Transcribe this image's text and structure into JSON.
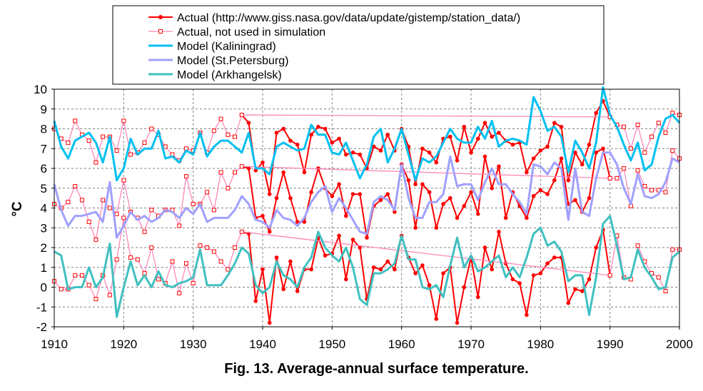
{
  "caption": "Fig. 13. Average-annual surface temperature.",
  "chart_data": {
    "type": "line",
    "title": "",
    "xlabel": "",
    "ylabel": "°C",
    "xlim": [
      1910,
      2000
    ],
    "ylim": [
      -2,
      10
    ],
    "xticks": [
      1910,
      1920,
      1930,
      1940,
      1950,
      1960,
      1970,
      1980,
      1990,
      2000
    ],
    "yticks": [
      -2,
      -1,
      0,
      1,
      2,
      3,
      4,
      5,
      6,
      7,
      8,
      9,
      10
    ],
    "grid": true,
    "legend": "top-center",
    "series": [
      {
        "name": "Actual (http://www.giss.nasa.gov/data/update/gistemp/station_data/)",
        "color": "#ff0000",
        "marker": "filled-circle",
        "width": 2,
        "group": "actual-kaliningrad",
        "x": [
          1937,
          1938,
          1939,
          1940,
          1941,
          1942,
          1943,
          1944,
          1945,
          1946,
          1947,
          1948,
          1949,
          1950,
          1951,
          1952,
          1953,
          1954,
          1955,
          1956,
          1957,
          1958,
          1959,
          1960,
          1961,
          1962,
          1963,
          1964,
          1965,
          1966,
          1967,
          1968,
          1969,
          1970,
          1971,
          1972,
          1973,
          1974,
          1975,
          1976,
          1977,
          1978,
          1979,
          1980,
          1981,
          1982,
          1983,
          1984,
          1985,
          1986,
          1987,
          1988,
          1989,
          1990
        ],
        "y": [
          8.7,
          8.3,
          5.9,
          6.3,
          4.7,
          7.8,
          8.0,
          7.4,
          7.2,
          5.8,
          7.7,
          8.1,
          8.0,
          7.3,
          7.5,
          6.7,
          6.8,
          6.7,
          6.0,
          7.1,
          6.9,
          7.7,
          6.9,
          8.0,
          7.1,
          5.2,
          7.0,
          6.8,
          6.3,
          7.5,
          7.6,
          6.4,
          8.1,
          6.8,
          7.5,
          8.3,
          7.6,
          7.8,
          7.4,
          7.2,
          7.3,
          5.8,
          6.5,
          6.9,
          7.1,
          8.3,
          8.1,
          5.4,
          6.8,
          6.2,
          7.2,
          8.8,
          9.4,
          8.6
        ]
      },
      {
        "name": "",
        "color": "#ff0000",
        "marker": "filled-circle",
        "width": 2,
        "group": "actual-stpetersburg",
        "x": [
          1937,
          1938,
          1939,
          1940,
          1941,
          1942,
          1943,
          1944,
          1945,
          1946,
          1947,
          1948,
          1949,
          1950,
          1951,
          1952,
          1953,
          1954,
          1955,
          1956,
          1957,
          1958,
          1959,
          1960,
          1961,
          1962,
          1963,
          1964,
          1965,
          1966,
          1967,
          1968,
          1969,
          1970,
          1971,
          1972,
          1973,
          1974,
          1975,
          1976,
          1977,
          1978,
          1979,
          1980,
          1981,
          1982,
          1983,
          1984,
          1985,
          1986,
          1987,
          1988,
          1989,
          1990
        ],
        "y": [
          6.1,
          6.0,
          3.5,
          3.6,
          2.8,
          4.5,
          5.8,
          4.5,
          3.3,
          3.3,
          4.8,
          6.0,
          5.0,
          4.6,
          5.2,
          3.6,
          4.7,
          4.7,
          2.5,
          4.1,
          4.4,
          4.7,
          3.8,
          6.2,
          5.4,
          3.0,
          5.2,
          4.8,
          3.0,
          4.2,
          4.5,
          3.5,
          4.1,
          4.8,
          3.7,
          6.6,
          5.0,
          6.1,
          3.5,
          4.8,
          4.1,
          3.5,
          4.6,
          4.9,
          4.7,
          5.4,
          6.5,
          4.2,
          4.4,
          3.8,
          4.5,
          6.8,
          7.0,
          5.5
        ]
      },
      {
        "name": "",
        "color": "#ff0000",
        "marker": "filled-circle",
        "width": 2,
        "group": "actual-arkhangelsk",
        "x": [
          1937,
          1938,
          1939,
          1940,
          1941,
          1942,
          1943,
          1944,
          1945,
          1946,
          1947,
          1948,
          1949,
          1950,
          1951,
          1952,
          1953,
          1954,
          1955,
          1956,
          1957,
          1958,
          1959,
          1960,
          1961,
          1962,
          1963,
          1964,
          1965,
          1966,
          1967,
          1968,
          1969,
          1970,
          1971,
          1972,
          1973,
          1974,
          1975,
          1976,
          1977,
          1978,
          1979,
          1980,
          1981,
          1982,
          1983,
          1984,
          1985,
          1986,
          1987,
          1988,
          1989,
          1990
        ],
        "y": [
          2.8,
          2.7,
          -0.7,
          0.9,
          -1.8,
          1.5,
          -0.1,
          1.3,
          -0.2,
          0.9,
          0.9,
          2.5,
          1.6,
          1.7,
          2.6,
          0.4,
          2.4,
          2.0,
          -0.6,
          1.0,
          0.9,
          1.3,
          0.9,
          2.6,
          1.5,
          0.7,
          1.1,
          0.1,
          -1.6,
          0.7,
          1.0,
          -1.8,
          0.0,
          1.5,
          -0.5,
          2.0,
          0.9,
          2.8,
          1.2,
          0.4,
          0.2,
          -1.4,
          0.6,
          0.7,
          1.2,
          1.5,
          1.5,
          -0.8,
          -0.1,
          -0.2,
          0.4,
          2.0,
          2.9,
          0.6
        ]
      },
      {
        "name": "Actual, not used in simulation",
        "color": "#ff88bb",
        "marker": "open-square",
        "width": 1.3,
        "group": "unused-kaliningrad",
        "x": [
          1910,
          1911,
          1912,
          1913,
          1914,
          1915,
          1916,
          1917,
          1918,
          1919,
          1920,
          1921,
          1922,
          1923,
          1924,
          1925,
          1926,
          1927,
          1928,
          1929,
          1930,
          1931,
          1932,
          1933,
          1934,
          1935,
          1936,
          1937,
          1990,
          1991,
          1992,
          1993,
          1994,
          1995,
          1996,
          1997,
          1998,
          1999,
          2000
        ],
        "y": [
          8.0,
          7.5,
          7.3,
          8.4,
          7.7,
          7.4,
          6.3,
          7.6,
          7.6,
          6.9,
          8.4,
          6.7,
          6.8,
          7.3,
          8.0,
          7.7,
          7.1,
          6.7,
          6.4,
          7.0,
          6.9,
          7.8,
          6.8,
          7.9,
          8.5,
          7.7,
          7.6,
          8.7,
          8.6,
          8.2,
          8.1,
          7.0,
          8.2,
          6.8,
          7.6,
          8.3,
          7.8,
          8.8,
          8.7
        ]
      },
      {
        "name": "",
        "color": "#ff88bb",
        "marker": "open-square",
        "width": 1.3,
        "group": "unused-stpetersburg",
        "x": [
          1910,
          1911,
          1912,
          1913,
          1914,
          1915,
          1916,
          1917,
          1918,
          1919,
          1920,
          1921,
          1922,
          1923,
          1924,
          1925,
          1926,
          1927,
          1928,
          1929,
          1930,
          1931,
          1932,
          1933,
          1934,
          1935,
          1936,
          1937,
          1990,
          1991,
          1992,
          1993,
          1994,
          1995,
          1996,
          1997,
          1998,
          1999,
          2000
        ],
        "y": [
          4.2,
          4.0,
          4.3,
          5.1,
          4.4,
          3.3,
          2.4,
          4.4,
          4.0,
          3.7,
          5.4,
          3.8,
          3.5,
          2.8,
          3.9,
          3.6,
          3.9,
          3.9,
          3.1,
          5.6,
          4.2,
          4.2,
          4.8,
          3.9,
          5.8,
          5.0,
          5.8,
          6.1,
          5.5,
          5.5,
          6.0,
          4.1,
          5.9,
          5.1,
          4.9,
          4.9,
          4.8,
          6.9,
          6.5
        ]
      },
      {
        "name": "",
        "color": "#ff88bb",
        "marker": "open-square",
        "width": 1.3,
        "group": "unused-arkhangelsk",
        "x": [
          1910,
          1911,
          1912,
          1913,
          1914,
          1915,
          1916,
          1917,
          1918,
          1919,
          1920,
          1921,
          1922,
          1923,
          1924,
          1925,
          1926,
          1927,
          1928,
          1929,
          1930,
          1931,
          1932,
          1933,
          1934,
          1935,
          1936,
          1937,
          1990,
          1991,
          1992,
          1993,
          1994,
          1995,
          1996,
          1997,
          1998,
          1999,
          2000
        ],
        "y": [
          0.3,
          -0.1,
          -0.1,
          0.6,
          0.6,
          0.1,
          -0.6,
          0.6,
          -0.4,
          1.4,
          3.5,
          1.5,
          1.4,
          0.7,
          2.0,
          0.4,
          0.2,
          1.3,
          -0.3,
          1.2,
          0.2,
          2.1,
          2.0,
          1.8,
          1.3,
          0.9,
          2.0,
          2.8,
          0.6,
          2.6,
          0.5,
          0.4,
          2.1,
          1.3,
          0.7,
          0.5,
          -0.2,
          1.9,
          1.9
        ]
      },
      {
        "name": "Model (Kaliningrad)",
        "color": "#00c0f0",
        "marker": "none",
        "width": 3,
        "group": "model-kaliningrad",
        "x": [
          1910,
          1911,
          1912,
          1913,
          1914,
          1915,
          1916,
          1917,
          1918,
          1919,
          1920,
          1921,
          1922,
          1923,
          1924,
          1925,
          1926,
          1927,
          1928,
          1929,
          1930,
          1931,
          1932,
          1933,
          1934,
          1935,
          1936,
          1937,
          1938,
          1939,
          1940,
          1941,
          1942,
          1943,
          1944,
          1945,
          1946,
          1947,
          1948,
          1949,
          1950,
          1951,
          1952,
          1953,
          1954,
          1955,
          1956,
          1957,
          1958,
          1959,
          1960,
          1961,
          1962,
          1963,
          1964,
          1965,
          1966,
          1967,
          1968,
          1969,
          1970,
          1971,
          1972,
          1973,
          1974,
          1975,
          1976,
          1977,
          1978,
          1979,
          1980,
          1981,
          1982,
          1983,
          1984,
          1985,
          1986,
          1987,
          1988,
          1989,
          1990,
          1991,
          1992,
          1993,
          1994,
          1995,
          1996,
          1997,
          1998,
          1999,
          2000
        ],
        "y": [
          8.4,
          7.1,
          6.5,
          7.4,
          7.6,
          7.8,
          7.3,
          6.3,
          7.6,
          5.4,
          6.0,
          7.5,
          6.7,
          7.0,
          7.0,
          7.9,
          6.5,
          6.6,
          6.3,
          6.9,
          6.7,
          7.8,
          6.6,
          7.1,
          7.4,
          7.4,
          7.1,
          6.8,
          7.8,
          6.0,
          6.0,
          5.7,
          7.1,
          7.3,
          7.1,
          6.9,
          7.0,
          8.2,
          7.7,
          7.7,
          6.8,
          6.7,
          7.3,
          6.4,
          5.5,
          6.2,
          7.6,
          8.0,
          6.3,
          7.0,
          8.0,
          6.7,
          5.4,
          6.5,
          6.3,
          6.6,
          7.3,
          8.0,
          7.5,
          7.3,
          7.3,
          8.1,
          7.5,
          8.4,
          7.1,
          7.4,
          7.5,
          7.4,
          7.2,
          9.6,
          8.9,
          7.9,
          8.1,
          7.6,
          5.8,
          7.4,
          6.8,
          6.0,
          7.3,
          10.1,
          8.7,
          8.1,
          7.2,
          6.4,
          7.3,
          5.9,
          6.2,
          7.6,
          8.5,
          8.7,
          8.3
        ]
      },
      {
        "name": "Model (St.Petersburg)",
        "color": "#a0a0ff",
        "marker": "none",
        "width": 3,
        "group": "model-stpetersburg",
        "x": [
          1910,
          1911,
          1912,
          1913,
          1914,
          1915,
          1916,
          1917,
          1918,
          1919,
          1920,
          1921,
          1922,
          1923,
          1924,
          1925,
          1926,
          1927,
          1928,
          1929,
          1930,
          1931,
          1932,
          1933,
          1934,
          1935,
          1936,
          1937,
          1938,
          1939,
          1940,
          1941,
          1942,
          1943,
          1944,
          1945,
          1946,
          1947,
          1948,
          1949,
          1950,
          1951,
          1952,
          1953,
          1954,
          1955,
          1956,
          1957,
          1958,
          1959,
          1960,
          1961,
          1962,
          1963,
          1964,
          1965,
          1966,
          1967,
          1968,
          1969,
          1970,
          1971,
          1972,
          1973,
          1974,
          1975,
          1976,
          1977,
          1978,
          1979,
          1980,
          1981,
          1982,
          1983,
          1984,
          1985,
          1986,
          1987,
          1988,
          1989,
          1990,
          1991,
          1992,
          1993,
          1994,
          1995,
          1996,
          1997,
          1998,
          1999,
          2000
        ],
        "y": [
          5.2,
          3.9,
          3.1,
          3.6,
          3.6,
          3.7,
          3.8,
          3.3,
          5.3,
          2.5,
          3.1,
          3.8,
          3.4,
          3.6,
          3.3,
          3.5,
          3.9,
          3.8,
          3.5,
          4.0,
          3.7,
          4.2,
          3.3,
          3.5,
          3.5,
          3.5,
          3.9,
          4.6,
          4.2,
          3.4,
          3.3,
          3.0,
          3.9,
          3.5,
          3.4,
          3.1,
          3.5,
          4.3,
          4.8,
          5.1,
          3.8,
          4.5,
          4.0,
          3.4,
          2.8,
          2.7,
          4.3,
          4.6,
          4.4,
          3.9,
          6.2,
          4.5,
          3.5,
          3.5,
          4.3,
          4.3,
          4.7,
          6.6,
          5.1,
          5.2,
          5.2,
          4.4,
          5.3,
          6.0,
          5.2,
          5.2,
          4.7,
          4.3,
          3.7,
          6.2,
          6.1,
          5.7,
          6.3,
          6.0,
          3.4,
          6.0,
          3.8,
          3.6,
          5.5,
          6.8,
          6.8,
          6.2,
          5.0,
          4.2,
          5.7,
          4.6,
          4.5,
          4.7,
          5.3,
          6.5,
          6.3
        ]
      },
      {
        "name": "Model (Arkhangelsk)",
        "color": "#40c0c0",
        "marker": "none",
        "width": 3,
        "group": "model-arkhangelsk",
        "x": [
          1910,
          1911,
          1912,
          1913,
          1914,
          1915,
          1916,
          1917,
          1918,
          1919,
          1920,
          1921,
          1922,
          1923,
          1924,
          1925,
          1926,
          1927,
          1928,
          1929,
          1930,
          1931,
          1932,
          1933,
          1934,
          1935,
          1936,
          1937,
          1938,
          1939,
          1940,
          1941,
          1942,
          1943,
          1944,
          1945,
          1946,
          1947,
          1948,
          1949,
          1950,
          1951,
          1952,
          1953,
          1954,
          1955,
          1956,
          1957,
          1958,
          1959,
          1960,
          1961,
          1962,
          1963,
          1964,
          1965,
          1966,
          1967,
          1968,
          1969,
          1970,
          1971,
          1972,
          1973,
          1974,
          1975,
          1976,
          1977,
          1978,
          1979,
          1980,
          1981,
          1982,
          1983,
          1984,
          1985,
          1986,
          1987,
          1988,
          1989,
          1990,
          1991,
          1992,
          1993,
          1994,
          1995,
          1996,
          1997,
          1998,
          1999,
          2000
        ],
        "y": [
          1.8,
          1.6,
          -0.1,
          0.0,
          0.0,
          1.0,
          0.0,
          0.5,
          2.2,
          -1.5,
          0.0,
          1.3,
          0.1,
          0.6,
          0.0,
          0.8,
          0.1,
          0.0,
          0.2,
          0.3,
          0.5,
          1.9,
          0.1,
          0.1,
          0.1,
          0.6,
          1.2,
          2.0,
          1.7,
          0.1,
          -0.3,
          0.0,
          1.3,
          0.6,
          0.4,
          0.0,
          1.0,
          1.5,
          2.8,
          2.0,
          1.6,
          1.3,
          2.0,
          1.0,
          -0.6,
          -0.9,
          0.7,
          0.7,
          0.9,
          1.2,
          2.6,
          1.4,
          1.4,
          0.0,
          -0.1,
          0.1,
          -0.5,
          1.1,
          2.5,
          1.0,
          1.6,
          0.8,
          1.0,
          1.3,
          1.6,
          0.5,
          1.0,
          0.5,
          1.5,
          2.7,
          3.0,
          2.1,
          2.3,
          1.8,
          0.3,
          0.6,
          0.6,
          -1.4,
          0.5,
          3.2,
          3.6,
          2.1,
          0.4,
          0.5,
          1.9,
          1.0,
          0.5,
          -0.1,
          0.0,
          1.5,
          1.8
        ]
      }
    ]
  }
}
